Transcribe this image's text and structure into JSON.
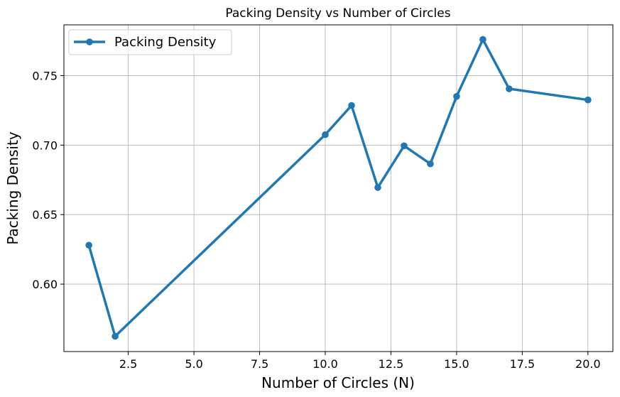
{
  "chart_data": {
    "type": "line",
    "title": "Packing Density vs Number of Circles",
    "xlabel": "Number of Circles (N)",
    "ylabel": "Packing Density",
    "xlim": [
      0.05,
      20.95
    ],
    "ylim": [
      0.5515,
      0.7865
    ],
    "xticks": [
      2.5,
      5.0,
      7.5,
      10.0,
      12.5,
      15.0,
      17.5,
      20.0
    ],
    "xtick_labels": [
      "2.5",
      "5.0",
      "7.5",
      "10.0",
      "12.5",
      "15.0",
      "17.5",
      "20.0"
    ],
    "yticks": [
      0.6,
      0.65,
      0.7,
      0.75
    ],
    "ytick_labels": [
      "0.60",
      "0.65",
      "0.70",
      "0.75"
    ],
    "grid": true,
    "legend_position": "top-left",
    "series": [
      {
        "name": "Packing Density",
        "color": "#1f77b4",
        "marker": "circle",
        "x": [
          1,
          2,
          10,
          11,
          12,
          13,
          14,
          15,
          16,
          17,
          20
        ],
        "y": [
          0.628,
          0.5625,
          0.7075,
          0.7285,
          0.6695,
          0.6995,
          0.6865,
          0.735,
          0.776,
          0.7405,
          0.7325
        ]
      }
    ]
  }
}
